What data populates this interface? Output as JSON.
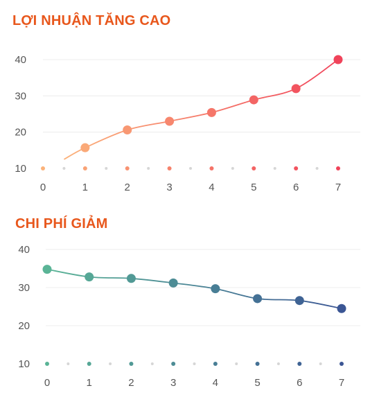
{
  "chart_data": [
    {
      "type": "line",
      "title": "LỢI NHUẬN TĂNG CAO",
      "title_color": "#e8571c",
      "x": [
        0.5,
        1,
        2,
        3,
        4,
        5,
        6,
        7
      ],
      "values": [
        12.5,
        15.7,
        20.6,
        23.0,
        25.4,
        28.9,
        32.0,
        40.0
      ],
      "marked_points": [
        1,
        2,
        3,
        4,
        5,
        6,
        7
      ],
      "x_ticks": [
        "0",
        "1",
        "2",
        "3",
        "4",
        "5",
        "6",
        "7"
      ],
      "y_ticks": [
        "10",
        "20",
        "30",
        "40"
      ],
      "xlim": [
        0,
        7
      ],
      "ylim": [
        10,
        40
      ],
      "gradient": [
        "#fbb27a",
        "#f0435a"
      ],
      "grid": true,
      "xlabel": "",
      "ylabel": ""
    },
    {
      "type": "line",
      "title": "CHI PHÍ GIẢM",
      "title_color": "#e8571c",
      "x": [
        0,
        1,
        2,
        3,
        4,
        5,
        6,
        7
      ],
      "values": [
        34.8,
        32.8,
        32.4,
        31.2,
        29.7,
        27.1,
        26.6,
        24.5
      ],
      "marked_points": [
        0,
        1,
        2,
        3,
        4,
        5,
        6,
        7
      ],
      "x_ticks": [
        "0",
        "1",
        "2",
        "3",
        "4",
        "5",
        "6",
        "7"
      ],
      "y_ticks": [
        "10",
        "20",
        "30",
        "40"
      ],
      "xlim": [
        0,
        7
      ],
      "ylim": [
        10,
        40
      ],
      "gradient": [
        "#5ab496",
        "#3b5694"
      ],
      "grid": true,
      "xlabel": "",
      "ylabel": ""
    }
  ]
}
